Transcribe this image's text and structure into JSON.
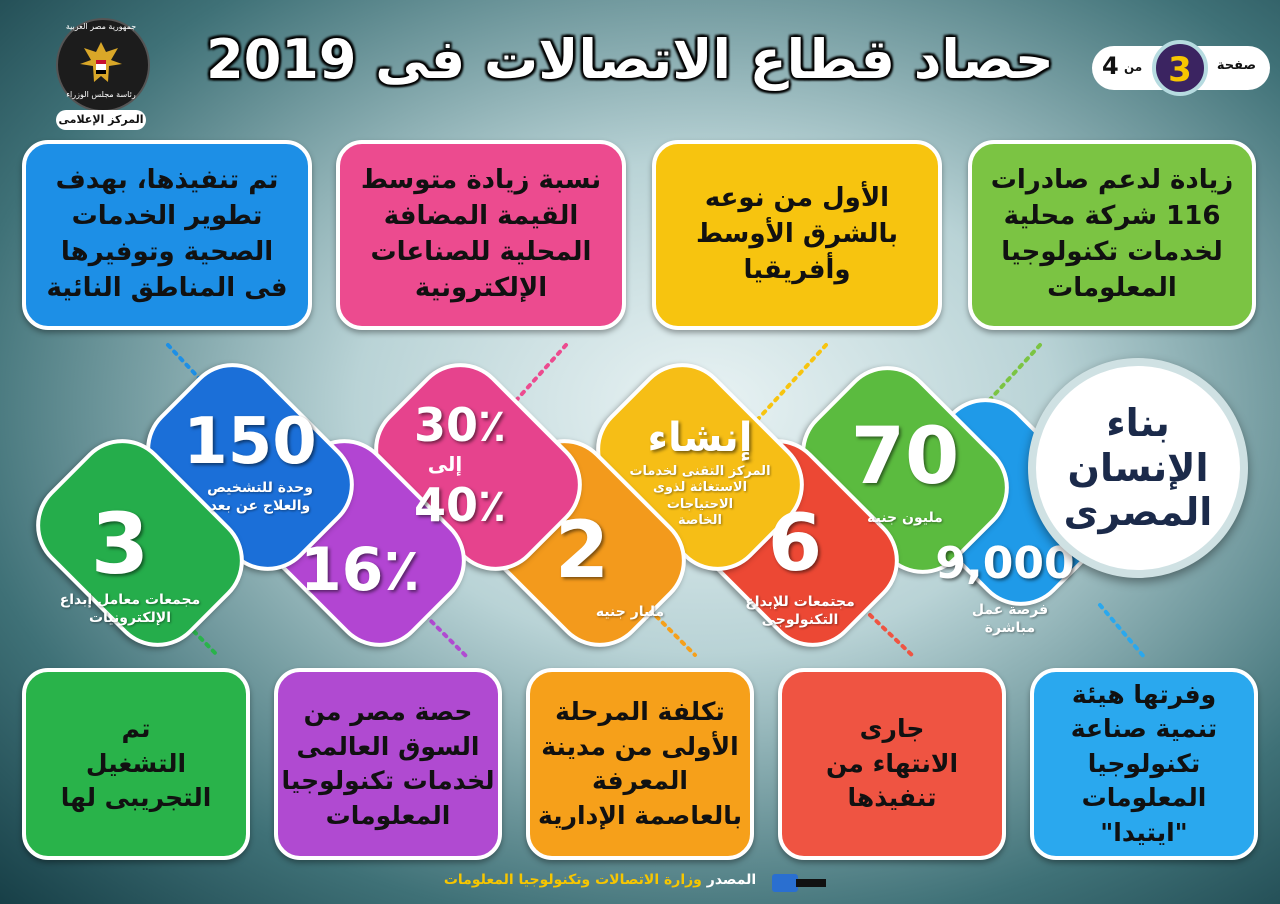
{
  "header": {
    "title": "حصاد قطاع الاتصالات فى 2019",
    "logo": {
      "top_text": "جمهورية مصر العربية",
      "bottom_text": "رئاسة مجلس الوزراء",
      "band_text": "المركز الإعلامى"
    },
    "pager": {
      "word": "صفحة",
      "current": "3",
      "of": "من",
      "total": "4"
    }
  },
  "center": {
    "text": "بناء\nالإنسان\nالمصرى"
  },
  "top_cards": [
    {
      "text": "زيادة لدعم صادرات\n116 شركة محلية\nلخدمات تكنولوجيا\nالمعلومات",
      "color": "#7bc443"
    },
    {
      "text": "الأول من نوعه\nبالشرق الأوسط\nوأفريقيا",
      "color": "#f7c40f"
    },
    {
      "text": "نسبة زيادة متوسط\nالقيمة المضافة\nالمحلية للصناعات\nالإلكترونية",
      "color": "#ec4b8f"
    },
    {
      "text": "تم تنفيذها، بهدف\nتطوير الخدمات\nالصحية وتوفيرها\nفى المناطق النائية",
      "color": "#1d8fe6"
    }
  ],
  "bottom_cards": [
    {
      "text": "وفرتها هيئة\nتنمية صناعة\nتكنولوجيا\nالمعلومات \"ايتيدا\"",
      "color": "#2aa8ee"
    },
    {
      "text": "جارى\nالانتهاء من\nتنفيذها",
      "color": "#ef5442"
    },
    {
      "text": "تكلفة المرحلة\nالأولى من مدينة\nالمعرفة\nبالعاصمة الإدارية",
      "color": "#f6a01a"
    },
    {
      "text": "حصة مصر من\nالسوق العالمى\nلخدمات تكنولوجيا\nالمعلومات",
      "color": "#b04ad1"
    },
    {
      "text": "تم\nالتشغيل\nالتجريبى لها",
      "color": "#29b34a"
    }
  ],
  "pills": {
    "jobs": {
      "value": "9,000",
      "label": "فرصة عمل\nمباشرة",
      "color": "#1f9ae8"
    },
    "million": {
      "value": "70",
      "label": "مليون جنيه",
      "color": "#5bbb3f"
    },
    "creativity": {
      "value": "6",
      "label": "مجتمعات للإبداع\nالتكنولوجى",
      "color": "#ec4834"
    },
    "inshaa": {
      "value": "إنشاء",
      "label": "المركز التقنى لخدمات\nالاستغاثة لذوى\nالاحتياجات\nالخاصة",
      "color": "#f6be16"
    },
    "billion": {
      "value": "2",
      "label": "مليار جنيه",
      "color": "#f39a1c"
    },
    "percent_range": {
      "from": "30٪",
      "mid": "إلى",
      "to": "40٪",
      "color": "#e6438d"
    },
    "share": {
      "value": "16٪",
      "color": "#b245d2"
    },
    "telemed": {
      "value": "150",
      "label": "وحدة للتشخيص\nوالعلاج عن بعد",
      "color": "#1b6fd8"
    },
    "labs": {
      "value": "3",
      "label": "مجمعات معامل إبداع\nالإلكترونيات",
      "color": "#25ad4b"
    }
  },
  "footer": {
    "source_label": "المصدر",
    "source_text": "وزارة الاتصالات وتكنولوجيا المعلومات"
  },
  "colors": {
    "title_outline": "#000000",
    "pager_circle": "#3b2461",
    "pager_digit": "#f7c600",
    "footer_label": "#ffffff",
    "footer_text": "#f7c600"
  }
}
